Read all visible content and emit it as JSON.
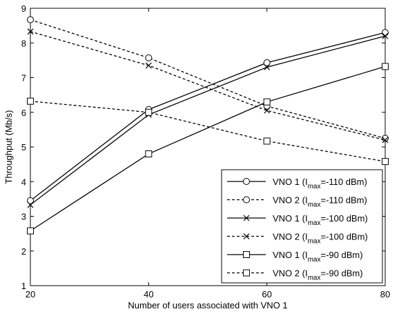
{
  "chart_data": {
    "type": "line",
    "xlabel": "Number of users associated with VNO 1",
    "ylabel": "Throughput (Mb/s)",
    "xlim": [
      20,
      80
    ],
    "ylim": [
      1,
      9
    ],
    "x_ticks": [
      "20",
      "40",
      "60",
      "80"
    ],
    "y_ticks": [
      "1",
      "2",
      "3",
      "4",
      "5",
      "6",
      "7",
      "8",
      "9"
    ],
    "grid": false,
    "legend_position": "bottom-right",
    "x": [
      20,
      40,
      60,
      80
    ],
    "series": [
      {
        "legend_prefix": "VNO 1 (I",
        "legend_sub": "max",
        "legend_suffix": "=-110 dBm)",
        "marker": "circle",
        "dash": "solid",
        "values": [
          3.45,
          6.08,
          7.43,
          8.3
        ]
      },
      {
        "legend_prefix": "VNO 2 (I",
        "legend_sub": "max",
        "legend_suffix": "=-110 dBm)",
        "marker": "circle",
        "dash": "dashed",
        "values": [
          8.67,
          7.57,
          6.18,
          5.25
        ]
      },
      {
        "legend_prefix": "VNO 1 (I",
        "legend_sub": "max",
        "legend_suffix": "=-100 dBm)",
        "marker": "x",
        "dash": "solid",
        "values": [
          3.33,
          5.93,
          7.3,
          8.2
        ]
      },
      {
        "legend_prefix": "VNO 2 (I",
        "legend_sub": "max",
        "legend_suffix": "=-100 dBm)",
        "marker": "x",
        "dash": "dashed",
        "values": [
          8.33,
          7.35,
          6.05,
          5.2
        ]
      },
      {
        "legend_prefix": "VNO 1 (I",
        "legend_sub": "max",
        "legend_suffix": "=-90 dBm)",
        "marker": "square",
        "dash": "solid",
        "values": [
          2.58,
          4.8,
          6.3,
          7.32
        ]
      },
      {
        "legend_prefix": "VNO 2 (I",
        "legend_sub": "max",
        "legend_suffix": "=-90 dBm)",
        "marker": "square",
        "dash": "dashed",
        "values": [
          6.32,
          6.0,
          5.17,
          4.58
        ]
      }
    ]
  }
}
